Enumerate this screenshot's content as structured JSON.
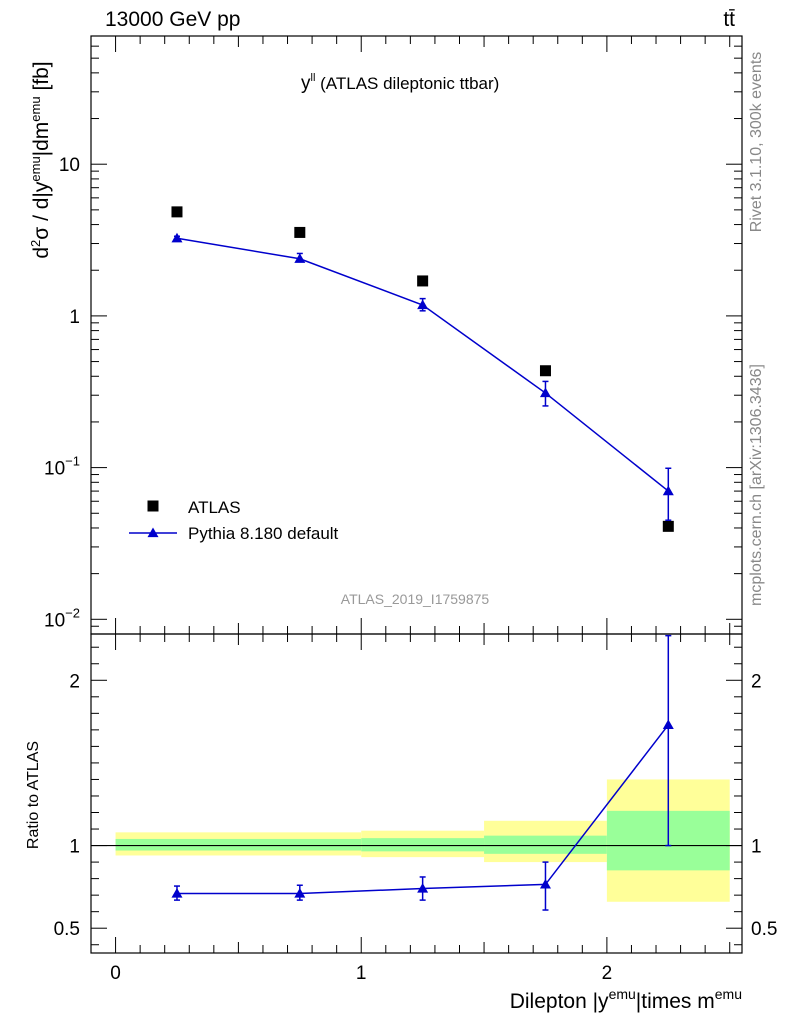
{
  "header": {
    "energy_label": "13000 GeV pp",
    "process_label": "tt̄"
  },
  "side_labels": {
    "rivet": "Rivet 3.1.10,  300k events",
    "mcplots": "mcplots.cern.ch [arXiv:1306.3436]"
  },
  "plot_title": {
    "main": "y",
    "sup": "ll",
    "rest": " (ATLAS dileptonic ttbar)"
  },
  "watermark": "ATLAS_2019_I1759875",
  "colors": {
    "data": "#000000",
    "mc": "#0000cc",
    "band_inner": "#99ff99",
    "band_outer": "#ffff99"
  },
  "chart_data": [
    {
      "type": "scatter",
      "panel": "main",
      "yscale": "log",
      "ylim": [
        0.008,
        70
      ],
      "xlim": [
        -0.1,
        2.55
      ],
      "ylabel": "d²σ / d|y^emu|dm^emu [fb]",
      "yticks": [
        {
          "value": 0.01,
          "base": "10",
          "exp": "−2"
        },
        {
          "value": 0.1,
          "base": "10",
          "exp": "−1"
        },
        {
          "value": 1,
          "label": "1"
        },
        {
          "value": 10,
          "label": "10"
        }
      ],
      "legend": {
        "position": "bottom-left",
        "entries": [
          "ATLAS",
          "Pythia 8.180 default"
        ]
      },
      "series": [
        {
          "name": "ATLAS",
          "marker": "square",
          "x": [
            0.25,
            0.75,
            1.25,
            1.75,
            2.25
          ],
          "y": [
            4.85,
            3.55,
            1.7,
            0.435,
            0.041
          ]
        },
        {
          "name": "Pythia 8.180 default",
          "marker": "triangle",
          "line": true,
          "x": [
            0.25,
            0.75,
            1.25,
            1.75,
            2.25
          ],
          "y": [
            3.25,
            2.38,
            1.18,
            0.31,
            0.07
          ],
          "yerr_low": [
            3.15,
            2.28,
            1.08,
            0.255,
            0.045
          ],
          "yerr_high": [
            3.35,
            2.58,
            1.3,
            0.37,
            0.099
          ]
        }
      ]
    },
    {
      "type": "scatter",
      "panel": "ratio",
      "ylabel": "Ratio to ATLAS",
      "xlabel": "Dilepton |y^emu|times m^emu",
      "xlim": [
        -0.1,
        2.55
      ],
      "ylim": [
        0.35,
        2.28
      ],
      "xticks": [
        0,
        1,
        2
      ],
      "yticks": [
        0.5,
        1,
        2
      ],
      "reference_line": 1,
      "bands": [
        {
          "x0": 0,
          "x1": 1,
          "inner": [
            0.97,
            1.04
          ],
          "outer": [
            0.94,
            1.08
          ]
        },
        {
          "x0": 1,
          "x1": 1.5,
          "inner": [
            0.965,
            1.045
          ],
          "outer": [
            0.93,
            1.09
          ]
        },
        {
          "x0": 1.5,
          "x1": 2,
          "inner": [
            0.95,
            1.06
          ],
          "outer": [
            0.9,
            1.15
          ]
        },
        {
          "x0": 2,
          "x1": 2.5,
          "inner": [
            0.85,
            1.21
          ],
          "outer": [
            0.66,
            1.4
          ]
        }
      ],
      "series": [
        {
          "name": "Pythia 8.180 default",
          "marker": "triangle",
          "line": true,
          "x": [
            0.25,
            0.75,
            1.25,
            1.75,
            2.25
          ],
          "y": [
            0.71,
            0.71,
            0.74,
            0.765,
            1.73
          ],
          "yerr_low": [
            0.67,
            0.67,
            0.67,
            0.61,
            1.0
          ],
          "yerr_high": [
            0.755,
            0.76,
            0.81,
            0.9,
            2.27
          ]
        }
      ]
    }
  ]
}
